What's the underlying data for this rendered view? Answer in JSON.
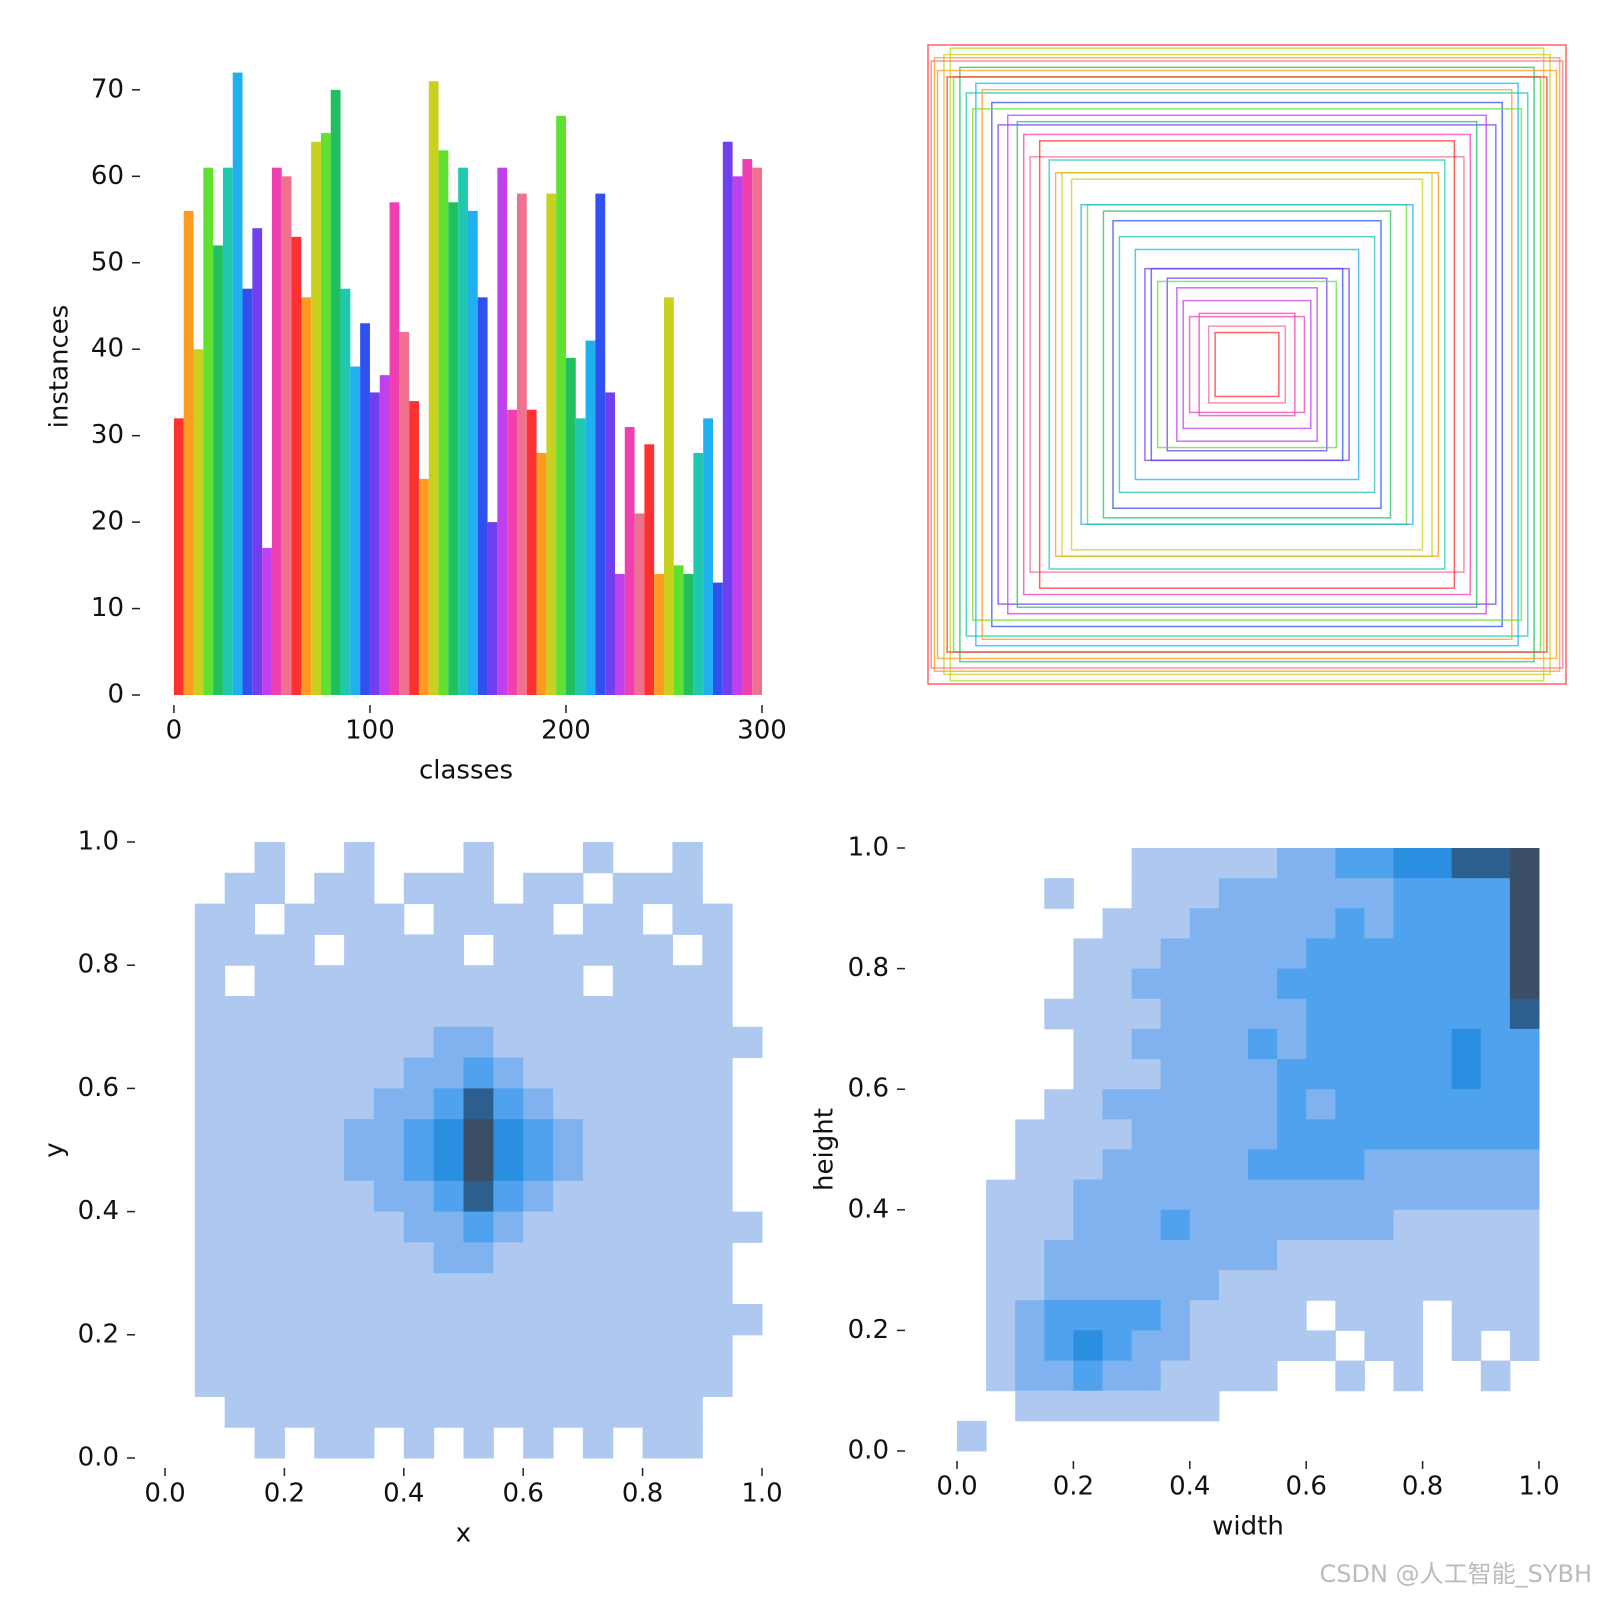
{
  "chart_data": [
    {
      "type": "bar",
      "xlabel": "classes",
      "ylabel": "instances",
      "colors": [
        "#ff3030",
        "#ff9a20",
        "#c8d020",
        "#60e030",
        "#20c060",
        "#20c8b0",
        "#20b0f0",
        "#3050f0",
        "#7040f0",
        "#c040f0",
        "#f040b0",
        "#f07090"
      ],
      "x": [
        0,
        5,
        10,
        15,
        20,
        25,
        30,
        35,
        40,
        45,
        50,
        55,
        60,
        65,
        70,
        75,
        80,
        85,
        90,
        95,
        100,
        105,
        110,
        115,
        120,
        125,
        130,
        135,
        140,
        145,
        150,
        155,
        160,
        165,
        170,
        175,
        180,
        185,
        190,
        195,
        200,
        205,
        210,
        215,
        220,
        225,
        230,
        235,
        240,
        245,
        250,
        255,
        260,
        265,
        270,
        275,
        280,
        285,
        290,
        295
      ],
      "values": [
        32,
        56,
        40,
        61,
        52,
        61,
        72,
        47,
        54,
        17,
        61,
        60,
        53,
        46,
        64,
        65,
        70,
        47,
        38,
        43,
        35,
        37,
        57,
        42,
        34,
        25,
        71,
        63,
        57,
        61,
        56,
        46,
        20,
        61,
        33,
        58,
        33,
        28,
        58,
        67,
        39,
        32,
        41,
        58,
        35,
        14,
        31,
        21,
        29,
        14,
        46,
        15,
        14,
        28,
        32,
        13,
        64,
        60,
        62,
        61
      ],
      "barwidth": 5,
      "xlim": [
        -2,
        300
      ],
      "ylim": [
        0,
        76
      ],
      "xticks": [
        0,
        100,
        200,
        300
      ],
      "yticks": [
        0,
        10,
        20,
        30,
        40,
        50,
        60,
        70
      ]
    },
    {
      "type": "boxes",
      "colors": [
        "#ff3030",
        "#ff9a20",
        "#c8d020",
        "#60e030",
        "#20c060",
        "#20c8b0",
        "#20b0f0",
        "#3050f0",
        "#7040f0",
        "#c040f0",
        "#f040b0",
        "#f07090"
      ],
      "widths": [
        1,
        0.98,
        0.95,
        0.92,
        0.9,
        0.88,
        0.85,
        0.8,
        0.78,
        0.75,
        0.7,
        0.68,
        0.65,
        0.6,
        0.55,
        0.5,
        0.45,
        0.4,
        0.35,
        0.3,
        0.25,
        0.2,
        0.15,
        0.12,
        0.1,
        0.97,
        0.93,
        0.86,
        0.72,
        0.62,
        0.52,
        0.42,
        0.32,
        0.22,
        0.18,
        0.99,
        0.94,
        0.83,
        0.58,
        0.28
      ],
      "heights": [
        1,
        0.96,
        0.97,
        0.9,
        0.93,
        0.85,
        0.88,
        0.82,
        0.75,
        0.78,
        0.72,
        0.65,
        0.7,
        0.6,
        0.58,
        0.5,
        0.48,
        0.4,
        0.36,
        0.3,
        0.27,
        0.2,
        0.16,
        0.12,
        0.1,
        0.92,
        0.99,
        0.8,
        0.76,
        0.64,
        0.5,
        0.45,
        0.3,
        0.24,
        0.15,
        0.95,
        0.9,
        0.86,
        0.6,
        0.26
      ]
    },
    {
      "type": "hist2d",
      "xlabel": "x",
      "ylabel": "y",
      "levels": [
        "none",
        "#aec8ef",
        "#7fb2ee",
        "#4ea2ee",
        "#2a8fe0",
        "#2d5f8e",
        "#3a4e66"
      ],
      "xlim": [
        0,
        1
      ],
      "ylim": [
        0,
        1
      ],
      "xticks": [
        {
          "value": 0,
          "label": "0.0"
        },
        0.2,
        0.4,
        0.6,
        0.8,
        {
          "value": 1,
          "label": "1.0"
        }
      ],
      "yticks": [
        {
          "value": 0,
          "label": "0.0"
        },
        0.2,
        0.4,
        0.6,
        0.8,
        {
          "value": 1,
          "label": "1.0"
        }
      ],
      "z": [
        [
          0,
          0,
          0,
          1,
          0,
          0,
          1,
          0,
          0,
          0,
          1,
          0,
          0,
          0,
          1,
          0,
          0,
          1,
          0,
          0
        ],
        [
          0,
          0,
          1,
          1,
          0,
          1,
          1,
          0,
          1,
          1,
          1,
          0,
          1,
          1,
          0,
          1,
          1,
          1,
          0,
          0
        ],
        [
          0,
          1,
          1,
          0,
          1,
          1,
          1,
          1,
          0,
          1,
          1,
          1,
          1,
          0,
          1,
          1,
          0,
          1,
          1,
          0
        ],
        [
          0,
          1,
          1,
          1,
          1,
          0,
          1,
          1,
          1,
          1,
          0,
          1,
          1,
          1,
          1,
          1,
          1,
          0,
          1,
          0
        ],
        [
          0,
          1,
          0,
          1,
          1,
          1,
          1,
          1,
          1,
          1,
          1,
          1,
          1,
          1,
          0,
          1,
          1,
          1,
          1,
          0
        ],
        [
          0,
          1,
          1,
          1,
          1,
          1,
          1,
          1,
          1,
          1,
          1,
          1,
          1,
          1,
          1,
          1,
          1,
          1,
          1,
          0
        ],
        [
          0,
          1,
          1,
          1,
          1,
          1,
          1,
          1,
          1,
          2,
          2,
          1,
          1,
          1,
          1,
          1,
          1,
          1,
          1,
          1
        ],
        [
          0,
          1,
          1,
          1,
          1,
          1,
          1,
          1,
          2,
          2,
          3,
          2,
          1,
          1,
          1,
          1,
          1,
          1,
          1,
          0
        ],
        [
          0,
          1,
          1,
          1,
          1,
          1,
          1,
          2,
          2,
          3,
          5,
          3,
          2,
          1,
          1,
          1,
          1,
          1,
          1,
          0
        ],
        [
          0,
          1,
          1,
          1,
          1,
          1,
          2,
          2,
          3,
          4,
          6,
          4,
          3,
          2,
          1,
          1,
          1,
          1,
          1,
          0
        ],
        [
          0,
          1,
          1,
          1,
          1,
          1,
          2,
          2,
          3,
          4,
          6,
          4,
          3,
          2,
          1,
          1,
          1,
          1,
          1,
          0
        ],
        [
          0,
          1,
          1,
          1,
          1,
          1,
          1,
          2,
          2,
          3,
          5,
          3,
          2,
          1,
          1,
          1,
          1,
          1,
          1,
          0
        ],
        [
          0,
          1,
          1,
          1,
          1,
          1,
          1,
          1,
          2,
          2,
          3,
          2,
          1,
          1,
          1,
          1,
          1,
          1,
          1,
          1
        ],
        [
          0,
          1,
          1,
          1,
          1,
          1,
          1,
          1,
          1,
          2,
          2,
          1,
          1,
          1,
          1,
          1,
          1,
          1,
          1,
          0
        ],
        [
          0,
          1,
          1,
          1,
          1,
          1,
          1,
          1,
          1,
          1,
          1,
          1,
          1,
          1,
          1,
          1,
          1,
          1,
          1,
          0
        ],
        [
          0,
          1,
          1,
          1,
          1,
          1,
          1,
          1,
          1,
          1,
          1,
          1,
          1,
          1,
          1,
          1,
          1,
          1,
          1,
          1
        ],
        [
          0,
          1,
          1,
          1,
          1,
          1,
          1,
          1,
          1,
          1,
          1,
          1,
          1,
          1,
          1,
          1,
          1,
          1,
          1,
          0
        ],
        [
          0,
          1,
          1,
          1,
          1,
          1,
          1,
          1,
          1,
          1,
          1,
          1,
          1,
          1,
          1,
          1,
          1,
          1,
          1,
          0
        ],
        [
          0,
          0,
          1,
          1,
          1,
          1,
          1,
          1,
          1,
          1,
          1,
          1,
          1,
          1,
          1,
          1,
          1,
          1,
          0,
          0
        ],
        [
          0,
          0,
          0,
          1,
          0,
          1,
          1,
          0,
          1,
          0,
          1,
          0,
          1,
          0,
          1,
          0,
          1,
          1,
          0,
          0
        ]
      ]
    },
    {
      "type": "hist2d",
      "xlabel": "width",
      "ylabel": "height",
      "levels": [
        "none",
        "#aec8ef",
        "#7fb2ee",
        "#4ea2ee",
        "#2a8fe0",
        "#2d5f8e",
        "#3a4e66"
      ],
      "xlim": [
        0,
        1
      ],
      "ylim": [
        0,
        1
      ],
      "xticks": [
        {
          "value": 0,
          "label": "0.0"
        },
        0.2,
        0.4,
        0.6,
        0.8,
        {
          "value": 1,
          "label": "1.0"
        }
      ],
      "yticks": [
        {
          "value": 0,
          "label": "0.0"
        },
        0.2,
        0.4,
        0.6,
        0.8,
        {
          "value": 1,
          "label": "1.0"
        }
      ],
      "z": [
        [
          0,
          0,
          0,
          0,
          0,
          0,
          1,
          1,
          1,
          1,
          1,
          2,
          2,
          3,
          3,
          4,
          4,
          5,
          5,
          6
        ],
        [
          0,
          0,
          0,
          1,
          0,
          0,
          1,
          1,
          1,
          2,
          2,
          2,
          2,
          2,
          2,
          3,
          3,
          3,
          3,
          6
        ],
        [
          0,
          0,
          0,
          0,
          0,
          1,
          1,
          1,
          2,
          2,
          2,
          2,
          2,
          3,
          2,
          3,
          3,
          3,
          3,
          6
        ],
        [
          0,
          0,
          0,
          0,
          1,
          1,
          1,
          2,
          2,
          2,
          2,
          2,
          3,
          3,
          3,
          3,
          3,
          3,
          3,
          6
        ],
        [
          0,
          0,
          0,
          0,
          1,
          1,
          2,
          2,
          2,
          2,
          2,
          3,
          3,
          3,
          3,
          3,
          3,
          3,
          3,
          6
        ],
        [
          0,
          0,
          0,
          1,
          1,
          1,
          1,
          2,
          2,
          2,
          2,
          2,
          3,
          3,
          3,
          3,
          3,
          3,
          3,
          5
        ],
        [
          0,
          0,
          0,
          0,
          1,
          1,
          2,
          2,
          2,
          2,
          3,
          2,
          3,
          3,
          3,
          3,
          3,
          4,
          3,
          3
        ],
        [
          0,
          0,
          0,
          0,
          1,
          1,
          1,
          2,
          2,
          2,
          2,
          3,
          3,
          3,
          3,
          3,
          3,
          4,
          3,
          3
        ],
        [
          0,
          0,
          0,
          1,
          1,
          2,
          2,
          2,
          2,
          2,
          2,
          3,
          2,
          3,
          3,
          3,
          3,
          3,
          3,
          3
        ],
        [
          0,
          0,
          1,
          1,
          1,
          1,
          2,
          2,
          2,
          2,
          2,
          3,
          3,
          3,
          3,
          3,
          3,
          3,
          3,
          3
        ],
        [
          0,
          0,
          1,
          1,
          1,
          2,
          2,
          2,
          2,
          2,
          3,
          3,
          3,
          3,
          2,
          2,
          2,
          2,
          2,
          2
        ],
        [
          0,
          1,
          1,
          1,
          2,
          2,
          2,
          2,
          2,
          2,
          2,
          2,
          2,
          2,
          2,
          2,
          2,
          2,
          2,
          2
        ],
        [
          0,
          1,
          1,
          1,
          2,
          2,
          2,
          3,
          2,
          2,
          2,
          2,
          2,
          2,
          2,
          1,
          1,
          1,
          1,
          1
        ],
        [
          0,
          1,
          1,
          2,
          2,
          2,
          2,
          2,
          2,
          2,
          2,
          1,
          1,
          1,
          1,
          1,
          1,
          1,
          1,
          1
        ],
        [
          0,
          1,
          1,
          2,
          2,
          2,
          2,
          2,
          2,
          1,
          1,
          1,
          1,
          1,
          1,
          1,
          1,
          1,
          1,
          1
        ],
        [
          0,
          1,
          2,
          3,
          3,
          3,
          3,
          2,
          1,
          1,
          1,
          1,
          0,
          1,
          1,
          1,
          0,
          1,
          1,
          1
        ],
        [
          0,
          1,
          2,
          3,
          4,
          3,
          2,
          2,
          1,
          1,
          1,
          1,
          1,
          0,
          1,
          1,
          0,
          1,
          0,
          1
        ],
        [
          0,
          1,
          2,
          2,
          3,
          2,
          2,
          1,
          1,
          1,
          1,
          0,
          0,
          1,
          0,
          1,
          0,
          0,
          1,
          0
        ],
        [
          0,
          0,
          1,
          1,
          1,
          1,
          1,
          1,
          1,
          0,
          0,
          0,
          0,
          0,
          0,
          0,
          0,
          0,
          0,
          0
        ],
        [
          1,
          0,
          0,
          0,
          0,
          0,
          0,
          0,
          0,
          0,
          0,
          0,
          0,
          0,
          0,
          0,
          0,
          0,
          0,
          0
        ]
      ]
    }
  ],
  "watermark": "CSDN @人工智能_SYBH"
}
